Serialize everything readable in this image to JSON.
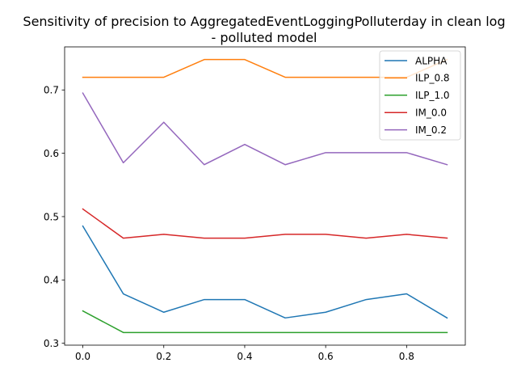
{
  "chart_data": {
    "type": "line",
    "title": "Sensitivity of precision to AggregatedEventLoggingPolluterday in clean log\n- polluted model",
    "title_lines": [
      "Sensitivity of precision to AggregatedEventLoggingPolluterday in clean log",
      "- polluted model"
    ],
    "xlabel": "",
    "ylabel": "",
    "x": [
      0.0,
      0.1,
      0.2,
      0.3,
      0.4,
      0.5,
      0.6,
      0.7,
      0.8,
      0.9
    ],
    "xlim": [
      -0.045,
      0.945
    ],
    "ylim": [
      0.297,
      0.768
    ],
    "xticks": [
      0.0,
      0.2,
      0.4,
      0.6,
      0.8
    ],
    "xtick_labels": [
      "0.0",
      "0.2",
      "0.4",
      "0.6",
      "0.8"
    ],
    "yticks": [
      0.3,
      0.4,
      0.5,
      0.6,
      0.7
    ],
    "ytick_labels": [
      "0.3",
      "0.4",
      "0.5",
      "0.6",
      "0.7"
    ],
    "grid": false,
    "legend_position": "top-right",
    "series": [
      {
        "name": "ALPHA",
        "color": "#1f77b4",
        "values": [
          0.485,
          0.378,
          0.349,
          0.369,
          0.369,
          0.34,
          0.349,
          0.369,
          0.378,
          0.34
        ]
      },
      {
        "name": "ILP_0.8",
        "color": "#ff7f0e",
        "values": [
          0.72,
          0.72,
          0.72,
          0.748,
          0.748,
          0.72,
          0.72,
          0.72,
          0.72,
          0.748
        ]
      },
      {
        "name": "ILP_1.0",
        "color": "#2ca02c",
        "values": [
          0.351,
          0.317,
          0.317,
          0.317,
          0.317,
          0.317,
          0.317,
          0.317,
          0.317,
          0.317
        ]
      },
      {
        "name": "IM_0.0",
        "color": "#d62728",
        "values": [
          0.512,
          0.466,
          0.472,
          0.466,
          0.466,
          0.472,
          0.472,
          0.466,
          0.472,
          0.466
        ]
      },
      {
        "name": "IM_0.2",
        "color": "#9467bd",
        "values": [
          0.695,
          0.585,
          0.649,
          0.582,
          0.614,
          0.582,
          0.601,
          0.601,
          0.601,
          0.582
        ]
      }
    ]
  }
}
